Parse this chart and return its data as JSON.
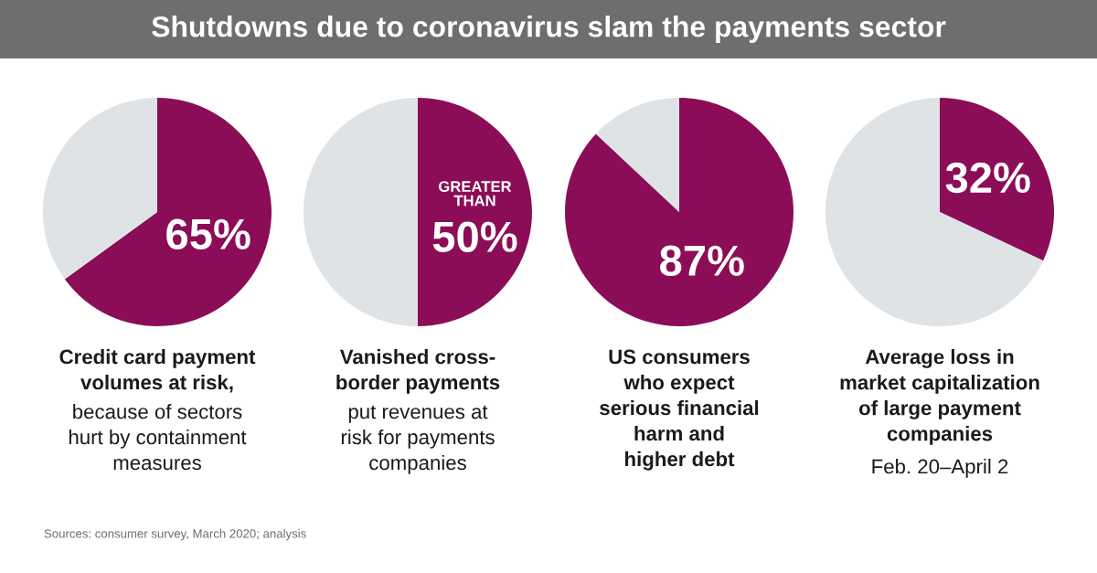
{
  "chart_data": [
    {
      "type": "pie",
      "title": "Shutdowns due to coronavirus slam the payments sector",
      "categories": [
        null,
        null
      ],
      "values": [
        65,
        35
      ],
      "colors": [
        "#8b0d57",
        "#dfe3e6"
      ],
      "value_labels": [
        "65%",
        null
      ],
      "xlabel": "Credit card payment\nvolumes at risk,",
      "annotations": [
        "because of sectors\nhurt by containment\nmeasures",
        "Sources: consumer survey, March 2020; analysis"
      ]
    },
    {
      "type": "pie",
      "categories": [
        null,
        null
      ],
      "values": [
        50,
        50
      ],
      "colors": [
        "#8b0d57",
        "#dfe3e6"
      ],
      "value_labels": [
        "50%",
        null
      ],
      "subtitle": "GREATER\nTHAN",
      "xlabel": "Vanished cross-\nborder payments",
      "annotations": [
        "put revenues at\nrisk for payments\ncompanies"
      ]
    },
    {
      "type": "pie",
      "categories": [
        null,
        null
      ],
      "values": [
        87,
        13
      ],
      "colors": [
        "#8b0d57",
        "#dfe3e6"
      ],
      "value_labels": [
        "87%",
        null
      ],
      "xlabel": "US consumers\nwho expect\nserious financial\nharm and\nhigher debt"
    },
    {
      "type": "pie",
      "categories": [
        null,
        null
      ],
      "values": [
        32,
        68
      ],
      "colors": [
        "#8b0d57",
        "#dfe3e6"
      ],
      "value_labels": [
        "32%",
        null
      ],
      "xlabel": "Average loss in\nmarket capitalization\nof large payment\ncompanies",
      "annotations": [
        "Feb. 20–April 2"
      ]
    }
  ]
}
